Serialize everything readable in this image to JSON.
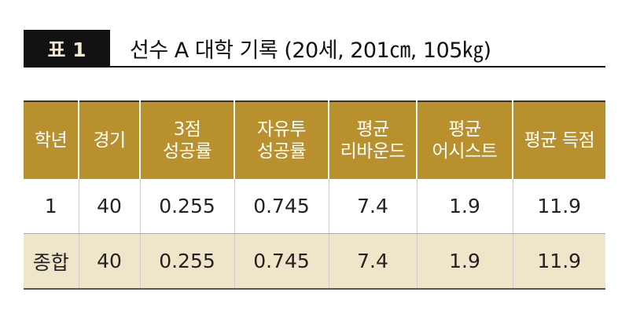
{
  "header": {
    "label": "표 1",
    "title": "선수 A 대학 기록 (20세, 201㎝, 105㎏)"
  },
  "table": {
    "columns": [
      [
        "학년"
      ],
      [
        "경기"
      ],
      [
        "3점",
        "성공률"
      ],
      [
        "자유투",
        "성공률"
      ],
      [
        "평균",
        "리바운드"
      ],
      [
        "평균",
        "어시스트"
      ],
      [
        "평균 득점"
      ]
    ],
    "rows": [
      [
        "1",
        "40",
        "0.255",
        "0.745",
        "7.4",
        "1.9",
        "11.9"
      ],
      [
        "종합",
        "40",
        "0.255",
        "0.745",
        "7.4",
        "1.9",
        "11.9"
      ]
    ]
  }
}
